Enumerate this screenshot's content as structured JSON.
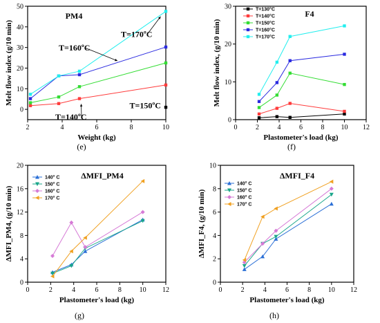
{
  "colors": {
    "black": "#000000",
    "red": "#ff3b3b",
    "green": "#33dd33",
    "blue": "#2a2ae0",
    "cyan": "#22eeee",
    "dblue": "#2a6fd6",
    "teal": "#1aa68a",
    "violet": "#d67ad6",
    "orange": "#f0a020"
  },
  "chart_data": [
    {
      "id": "e",
      "type": "line",
      "caption": "(e)",
      "title": "PM4",
      "xlabel": "Weight (kg)",
      "ylabel": "Melt flow index (g/10 min)",
      "xlim": [
        2,
        10
      ],
      "ylim": [
        -5,
        50
      ],
      "xticks": [
        2,
        4,
        6,
        8,
        10
      ],
      "yticks": [
        0,
        10,
        20,
        30,
        40,
        50
      ],
      "x": [
        2.16,
        3.8,
        5,
        10
      ],
      "series": [
        {
          "name": "T=140ºC",
          "color": "#ff3b3b",
          "values": [
            1.8,
            2.8,
            5.2,
            11.8
          ]
        },
        {
          "name": "T=150ºC",
          "color": "#33dd33",
          "values": [
            3.2,
            6,
            11,
            22.5
          ]
        },
        {
          "name": "T=160ºC",
          "color": "#2a2ae0",
          "values": [
            5.2,
            16.2,
            16.8,
            30.2
          ]
        },
        {
          "name": "T=170ºC",
          "color": "#22eeee",
          "values": [
            7.3,
            16.2,
            18.5,
            47.5
          ]
        }
      ],
      "extra_points": [
        {
          "x": 10,
          "y": 1,
          "color": "#000000"
        }
      ],
      "annotations": [
        {
          "text": "T=160ºC",
          "tx": 3.8,
          "ty": 28.5,
          "ax": 7.2,
          "ay": 23.5
        },
        {
          "text": "T=170ºC",
          "tx": 7.4,
          "ty": 35,
          "ax": 9.7,
          "ay": 45
        },
        {
          "text": "T=150ºC",
          "tx": 7.9,
          "ty": 0.5,
          "ax": 0,
          "ay": 0
        },
        {
          "text": "T=140ºC",
          "tx": 3.6,
          "ty": -5,
          "ax": 5.1,
          "ay": 2.6
        }
      ]
    },
    {
      "id": "f",
      "type": "line",
      "caption": "(f)",
      "title": "F4",
      "xlabel": "Plastometer's load (kg)",
      "ylabel": "Melt flow index, (g/10 min)",
      "xlim": [
        0,
        12
      ],
      "ylim": [
        0,
        30
      ],
      "xticks": [
        0,
        2,
        4,
        6,
        8,
        10,
        12
      ],
      "yticks": [
        0,
        10,
        20,
        30
      ],
      "x": [
        2.16,
        3.8,
        5,
        10
      ],
      "series": [
        {
          "name": "T=130°C",
          "color": "#000000",
          "values": [
            0.5,
            0.8,
            0.6,
            1.5
          ]
        },
        {
          "name": "T=140°C",
          "color": "#ff3b3b",
          "values": [
            1.5,
            3,
            4.3,
            2.2
          ]
        },
        {
          "name": "T=150°C",
          "color": "#33dd33",
          "values": [
            3.2,
            6.5,
            12.3,
            9.3
          ]
        },
        {
          "name": "T=160°C",
          "color": "#2a2ae0",
          "values": [
            4.8,
            9.8,
            15.6,
            17.3
          ]
        },
        {
          "name": "T=170°C",
          "color": "#22eeee",
          "values": [
            6.7,
            15.2,
            22,
            24.8
          ]
        }
      ]
    },
    {
      "id": "g",
      "type": "line",
      "caption": "(g)",
      "title": "ΔMFI_PM4",
      "xlabel": "Plastometer's load (kg)",
      "ylabel": "ΔMFI_PM4, (g/10 min)",
      "xlim": [
        0,
        12
      ],
      "ylim": [
        0,
        20
      ],
      "xticks": [
        0,
        2,
        4,
        6,
        8,
        10,
        12
      ],
      "yticks": [
        0,
        4,
        8,
        12,
        16,
        20
      ],
      "x": [
        2.16,
        3.8,
        5,
        10
      ],
      "series": [
        {
          "name": "140° C",
          "color": "#2a6fd6",
          "marker": "tri-up",
          "values": [
            1.7,
            3,
            5.3,
            10.7
          ]
        },
        {
          "name": "150° C",
          "color": "#1aa68a",
          "marker": "tri-down",
          "values": [
            1.5,
            2.8,
            5.8,
            10.5
          ]
        },
        {
          "name": "160° C",
          "color": "#d67ad6",
          "marker": "diamond",
          "values": [
            4.5,
            10.2,
            6,
            12
          ]
        },
        {
          "name": "170° C",
          "color": "#f0a020",
          "marker": "tri-left",
          "values": [
            1,
            5.3,
            7.6,
            17.3
          ]
        }
      ]
    },
    {
      "id": "h",
      "type": "line",
      "caption": "(h)",
      "title": "ΔMFI_F4",
      "xlabel": "Plastometer's load (kg)",
      "ylabel": "ΔMFI_F4, (g/10 min)",
      "xlim": [
        0,
        12
      ],
      "ylim": [
        0,
        10
      ],
      "xticks": [
        0,
        2,
        4,
        6,
        8,
        10,
        12
      ],
      "yticks": [
        0,
        2,
        4,
        6,
        8,
        10
      ],
      "x": [
        2.16,
        3.8,
        5,
        10
      ],
      "series": [
        {
          "name": "140° C",
          "color": "#2a6fd6",
          "marker": "tri-up",
          "values": [
            1.1,
            2.2,
            3.7,
            6.7
          ]
        },
        {
          "name": "150° C",
          "color": "#1aa68a",
          "marker": "tri-down",
          "values": [
            1.4,
            3.3,
            3.9,
            7.5
          ]
        },
        {
          "name": "160° C",
          "color": "#d67ad6",
          "marker": "diamond",
          "values": [
            1.7,
            3.3,
            4.4,
            8
          ]
        },
        {
          "name": "170° C",
          "color": "#f0a020",
          "marker": "tri-left",
          "values": [
            1.9,
            5.6,
            6.3,
            8.6
          ]
        }
      ]
    }
  ]
}
